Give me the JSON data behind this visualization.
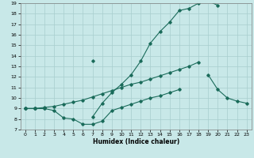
{
  "xlabel": "Humidex (Indice chaleur)",
  "bg_color": "#c8e8e8",
  "grid_color": "#a8cece",
  "line_color": "#1a6b5a",
  "xlim": [
    -0.5,
    23.5
  ],
  "ylim": [
    7,
    19
  ],
  "xticks": [
    0,
    1,
    2,
    3,
    4,
    5,
    6,
    7,
    8,
    9,
    10,
    11,
    12,
    13,
    14,
    15,
    16,
    17,
    18,
    19,
    20,
    21,
    22,
    23
  ],
  "yticks": [
    7,
    8,
    9,
    10,
    11,
    12,
    13,
    14,
    15,
    16,
    17,
    18,
    19
  ],
  "c1x": [
    0,
    1,
    2,
    7,
    8,
    9,
    10,
    11,
    12,
    13,
    14,
    15,
    16,
    17,
    18,
    19,
    20
  ],
  "c1y": [
    9.0,
    9.0,
    9.0,
    8.2,
    9.5,
    10.5,
    11.3,
    12.2,
    13.5,
    15.2,
    16.3,
    17.2,
    18.3,
    18.5,
    19.0,
    19.2,
    18.8
  ],
  "c2x": [
    0,
    1,
    2,
    3,
    4,
    5,
    6,
    7,
    8,
    9,
    10,
    11,
    12,
    13,
    14,
    15,
    16,
    17,
    18
  ],
  "c2y": [
    9.0,
    9.0,
    9.1,
    9.2,
    9.4,
    9.6,
    9.8,
    10.1,
    10.4,
    10.7,
    11.0,
    11.3,
    11.5,
    11.8,
    12.1,
    12.4,
    12.7,
    13.0,
    13.4
  ],
  "c3x": [
    0,
    1,
    2,
    3,
    4,
    5,
    6,
    7,
    8,
    9,
    10,
    11,
    12,
    13,
    14,
    15,
    16
  ],
  "c3y": [
    9.0,
    9.0,
    9.0,
    8.8,
    8.1,
    8.0,
    7.5,
    7.5,
    7.8,
    8.8,
    9.1,
    9.4,
    9.7,
    10.0,
    10.2,
    10.5,
    10.8
  ],
  "c4x": [
    7,
    19,
    20,
    21,
    22,
    23
  ],
  "c4y": [
    13.5,
    12.2,
    10.8,
    10.0,
    9.7,
    9.5
  ]
}
